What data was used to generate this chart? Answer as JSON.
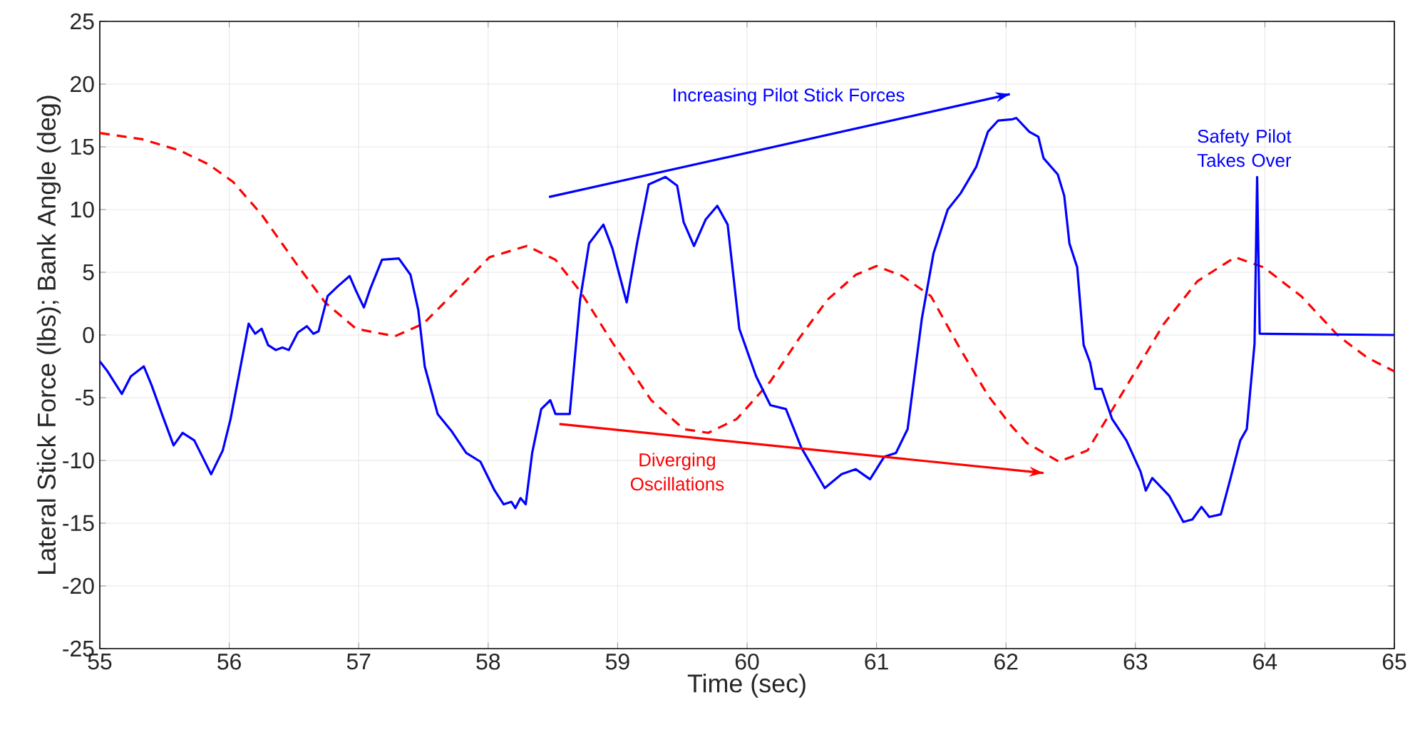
{
  "chart_data": {
    "type": "line",
    "xlabel": "Time (sec)",
    "ylabel": "Lateral Stick Force (lbs); Bank Angle (deg)",
    "xlim": [
      55,
      65
    ],
    "ylim": [
      -25,
      25
    ],
    "xticks": [
      55,
      56,
      57,
      58,
      59,
      60,
      61,
      62,
      63,
      64,
      65
    ],
    "yticks": [
      -25,
      -20,
      -15,
      -10,
      -5,
      0,
      5,
      10,
      15,
      20,
      25
    ],
    "grid": true,
    "marker": "none",
    "series": [
      {
        "color": "#ff0000",
        "line_style": "dashed",
        "x": [
          55,
          55.33,
          55.62,
          55.84,
          56.03,
          56.25,
          56.51,
          56.74,
          56.98,
          57.28,
          57.5,
          57.75,
          58.01,
          58.3,
          58.52,
          58.71,
          58.96,
          59.26,
          59.51,
          59.7,
          59.92,
          60.18,
          60.4,
          60.62,
          60.84,
          61.0,
          61.2,
          61.42,
          61.64,
          61.86,
          62.03,
          62.16,
          62.41,
          62.63,
          62.93,
          63.22,
          63.48,
          63.77,
          63.99,
          64.28,
          64.57,
          64.79,
          65
        ],
        "values": [
          16.1,
          15.6,
          14.7,
          13.6,
          12.2,
          9.6,
          5.8,
          2.6,
          0.5,
          -0.1,
          0.9,
          3.5,
          6.2,
          7.1,
          6.0,
          3.5,
          -0.6,
          -5.2,
          -7.5,
          -7.8,
          -6.7,
          -3.7,
          -0.3,
          2.8,
          4.8,
          5.5,
          4.7,
          3.1,
          -1.0,
          -4.8,
          -7.1,
          -8.6,
          -10.1,
          -9.2,
          -4.1,
          0.9,
          4.3,
          6.2,
          5.4,
          3.1,
          -0.1,
          -1.8,
          -2.9
        ]
      },
      {
        "color": "#0000ff",
        "line_style": "solid",
        "x": [
          55,
          55.06,
          55.17,
          55.24,
          55.34,
          55.4,
          55.48,
          55.57,
          55.64,
          55.73,
          55.86,
          55.95,
          56.01,
          56.06,
          56.15,
          56.2,
          56.25,
          56.3,
          56.36,
          56.41,
          56.46,
          56.53,
          56.6,
          56.65,
          56.69,
          56.76,
          56.84,
          56.93,
          56.98,
          57.04,
          57.09,
          57.18,
          57.31,
          57.4,
          57.46,
          57.51,
          57.61,
          57.72,
          57.83,
          57.94,
          58.05,
          58.12,
          58.18,
          58.21,
          58.25,
          58.29,
          58.34,
          58.41,
          58.48,
          58.52,
          58.63,
          58.71,
          58.78,
          58.89,
          58.96,
          59.07,
          59.15,
          59.24,
          59.37,
          59.46,
          59.51,
          59.59,
          59.68,
          59.77,
          59.85,
          59.94,
          60.07,
          60.18,
          60.3,
          60.42,
          60.6,
          60.73,
          60.84,
          60.95,
          61.06,
          61.15,
          61.24,
          61.35,
          61.44,
          61.55,
          61.65,
          61.77,
          61.86,
          61.94,
          62.05,
          62.08,
          62.18,
          62.25,
          62.29,
          62.4,
          62.45,
          62.49,
          62.55,
          62.6,
          62.65,
          62.69,
          62.74,
          62.82,
          62.93,
          63.04,
          63.08,
          63.13,
          63.26,
          63.37,
          63.44,
          63.51,
          63.57,
          63.66,
          63.73,
          63.81,
          63.86,
          63.92,
          63.94,
          63.96,
          65
        ],
        "values": [
          -2.1,
          -2.9,
          -4.7,
          -3.3,
          -2.5,
          -4.0,
          -6.3,
          -8.8,
          -7.8,
          -8.4,
          -11.1,
          -9.2,
          -6.7,
          -4.0,
          0.9,
          0.1,
          0.5,
          -0.8,
          -1.2,
          -1.0,
          -1.2,
          0.2,
          0.7,
          0.1,
          0.3,
          3.1,
          3.9,
          4.7,
          3.5,
          2.2,
          3.7,
          6.0,
          6.1,
          4.8,
          2.0,
          -2.5,
          -6.3,
          -7.7,
          -9.4,
          -10.1,
          -12.4,
          -13.5,
          -13.3,
          -13.8,
          -13.0,
          -13.5,
          -9.4,
          -5.9,
          -5.2,
          -6.3,
          -6.3,
          2.8,
          7.3,
          8.8,
          6.9,
          2.6,
          7.3,
          12.0,
          12.6,
          11.9,
          9.0,
          7.1,
          9.2,
          10.3,
          8.8,
          0.5,
          -3.3,
          -5.6,
          -5.9,
          -9.0,
          -12.2,
          -11.1,
          -10.7,
          -11.5,
          -9.7,
          -9.4,
          -7.5,
          1.3,
          6.5,
          10.0,
          11.3,
          13.4,
          16.2,
          17.1,
          17.2,
          17.3,
          16.2,
          15.8,
          14.1,
          12.8,
          11.1,
          7.3,
          5.4,
          -0.8,
          -2.2,
          -4.3,
          -4.3,
          -6.7,
          -8.4,
          -10.9,
          -12.4,
          -11.4,
          -12.8,
          -14.9,
          -14.7,
          -13.7,
          -14.5,
          -14.3,
          -11.6,
          -8.4,
          -7.5,
          -0.7,
          12.6,
          0.1,
          0
        ]
      },
      {
        "type": "line",
        "color": "#0000ff",
        "line_style": "solid",
        "x": [
          58.47,
          62.03
        ],
        "values": [
          11.0,
          19.2
        ]
      },
      {
        "type": "line",
        "color": "#ff0000",
        "line_style": "solid",
        "x": [
          58.55,
          62.29
        ],
        "values": [
          -7.1,
          -11.0
        ]
      }
    ],
    "annotations": [
      "Increasing Pilot Stick Forces",
      "Diverging Oscillations",
      "Safety Pilot Takes Over"
    ]
  }
}
